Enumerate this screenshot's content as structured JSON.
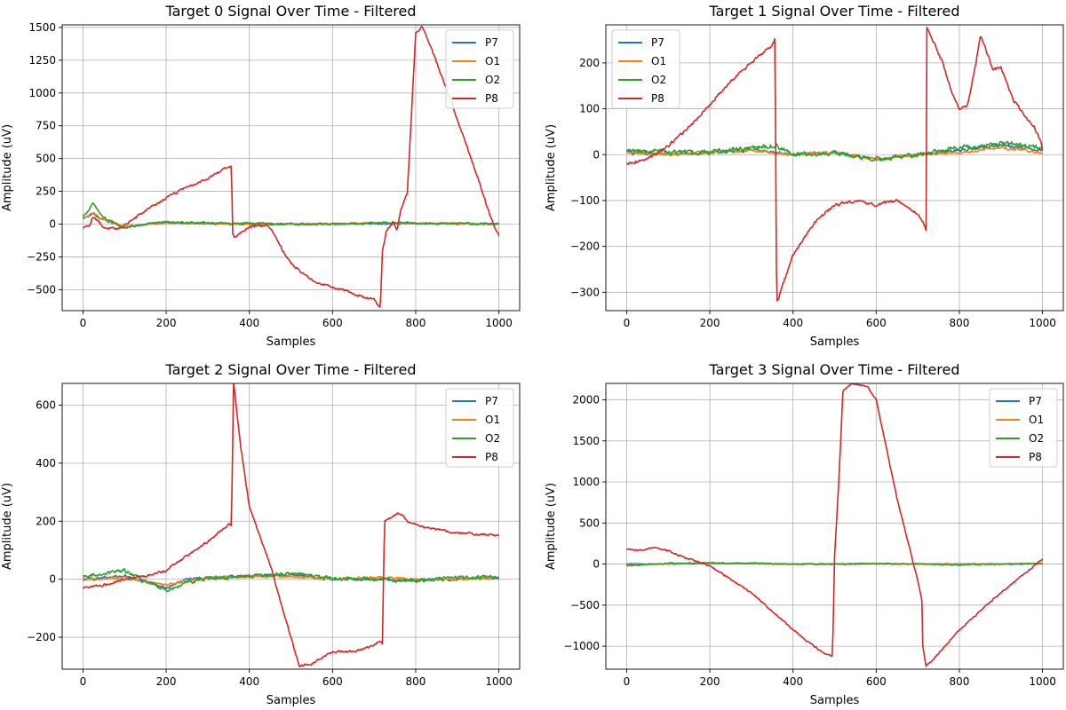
{
  "figure": {
    "colors": {
      "P7": "#1f77b4",
      "O1": "#ff7f0e",
      "O2": "#2ca02c",
      "P8": "#d62728"
    }
  },
  "chart_data": [
    {
      "type": "line",
      "title": "Target 0 Signal Over Time - Filtered",
      "xlabel": "Samples",
      "ylabel": "Amplitude (uV)",
      "xlim": [
        -50,
        1050
      ],
      "ylim": [
        -660,
        1520
      ],
      "xticks": [
        0,
        200,
        400,
        600,
        800,
        1000
      ],
      "yticks": [
        -500,
        -250,
        0,
        250,
        500,
        750,
        1000,
        1250,
        1500
      ],
      "grid": true,
      "legend_position": "top-right",
      "series": [
        {
          "name": "P7",
          "color": "#1f77b4",
          "noise": 10,
          "x": [
            0,
            10,
            25,
            40,
            60,
            100,
            150,
            200,
            300,
            400,
            500,
            600,
            700,
            800,
            900,
            1000
          ],
          "y": [
            40,
            55,
            80,
            45,
            20,
            -20,
            0,
            10,
            5,
            0,
            0,
            0,
            5,
            5,
            5,
            0
          ]
        },
        {
          "name": "O1",
          "color": "#ff7f0e",
          "noise": 10,
          "x": [
            0,
            10,
            25,
            40,
            60,
            100,
            150,
            200,
            300,
            400,
            500,
            600,
            700,
            800,
            900,
            1000
          ],
          "y": [
            50,
            60,
            90,
            50,
            25,
            -20,
            0,
            10,
            5,
            0,
            0,
            0,
            10,
            5,
            5,
            0
          ]
        },
        {
          "name": "O2",
          "color": "#2ca02c",
          "noise": 12,
          "x": [
            0,
            10,
            25,
            40,
            60,
            100,
            150,
            200,
            300,
            400,
            500,
            600,
            700,
            800,
            900,
            1000
          ],
          "y": [
            60,
            90,
            160,
            80,
            30,
            -30,
            0,
            15,
            10,
            5,
            0,
            0,
            10,
            10,
            5,
            0
          ]
        },
        {
          "name": "P8",
          "color": "#d62728",
          "noise": 15,
          "x": [
            0,
            15,
            25,
            50,
            80,
            100,
            150,
            200,
            250,
            300,
            340,
            357,
            360,
            365,
            380,
            400,
            440,
            450,
            480,
            500,
            550,
            600,
            650,
            700,
            715,
            720,
            722,
            730,
            745,
            755,
            765,
            780,
            800,
            815,
            830,
            860,
            900,
            950,
            980,
            1000
          ],
          "y": [
            -30,
            -10,
            60,
            -20,
            -40,
            -10,
            100,
            200,
            280,
            350,
            420,
            440,
            -80,
            -100,
            -70,
            -20,
            -10,
            -30,
            -200,
            -300,
            -430,
            -480,
            -530,
            -580,
            -640,
            -220,
            -180,
            -50,
            20,
            -50,
            120,
            250,
            1450,
            1510,
            1400,
            1150,
            800,
            350,
            50,
            -90
          ]
        }
      ]
    },
    {
      "type": "line",
      "title": "Target 1 Signal Over Time - Filtered",
      "xlabel": "Samples",
      "ylabel": "Amplitude (uV)",
      "xlim": [
        -50,
        1050
      ],
      "ylim": [
        -340,
        283
      ],
      "xticks": [
        0,
        200,
        400,
        600,
        800,
        1000
      ],
      "yticks": [
        -300,
        -200,
        -100,
        0,
        100,
        200
      ],
      "grid": true,
      "legend_position": "top-left",
      "series": [
        {
          "name": "P7",
          "color": "#1f77b4",
          "noise": 5,
          "x": [
            0,
            100,
            200,
            300,
            360,
            400,
            500,
            600,
            700,
            800,
            900,
            1000
          ],
          "y": [
            5,
            0,
            5,
            10,
            5,
            0,
            5,
            -10,
            0,
            10,
            20,
            10
          ]
        },
        {
          "name": "O1",
          "color": "#ff7f0e",
          "noise": 5,
          "x": [
            0,
            100,
            200,
            300,
            360,
            400,
            500,
            600,
            700,
            800,
            900,
            1000
          ],
          "y": [
            5,
            0,
            5,
            10,
            5,
            0,
            5,
            -10,
            0,
            5,
            15,
            5
          ]
        },
        {
          "name": "O2",
          "color": "#2ca02c",
          "noise": 8,
          "x": [
            0,
            100,
            200,
            300,
            360,
            400,
            500,
            600,
            700,
            800,
            900,
            1000
          ],
          "y": [
            10,
            5,
            5,
            15,
            20,
            0,
            5,
            -10,
            0,
            15,
            25,
            15
          ]
        },
        {
          "name": "P8",
          "color": "#d62728",
          "noise": 5,
          "x": [
            0,
            50,
            100,
            150,
            200,
            250,
            300,
            350,
            357,
            360,
            362,
            370,
            400,
            450,
            500,
            550,
            600,
            650,
            700,
            715,
            720,
            722,
            740,
            760,
            780,
            800,
            820,
            840,
            850,
            860,
            880,
            900,
            930,
            960,
            980,
            995,
            1000
          ],
          "y": [
            -20,
            -10,
            20,
            60,
            110,
            160,
            200,
            240,
            255,
            -250,
            -320,
            -300,
            -220,
            -150,
            -110,
            -100,
            -110,
            -100,
            -130,
            -150,
            -165,
            275,
            240,
            200,
            140,
            100,
            110,
            200,
            260,
            240,
            185,
            190,
            120,
            80,
            60,
            30,
            10
          ]
        }
      ]
    },
    {
      "type": "line",
      "title": "Target 2 Signal Over Time - Filtered",
      "xlabel": "Samples",
      "ylabel": "Amplitude (uV)",
      "xlim": [
        -50,
        1050
      ],
      "ylim": [
        -310,
        675
      ],
      "xticks": [
        0,
        200,
        400,
        600,
        800,
        1000
      ],
      "yticks": [
        -200,
        0,
        200,
        400,
        600
      ],
      "grid": true,
      "legend_position": "top-right",
      "series": [
        {
          "name": "P7",
          "color": "#1f77b4",
          "noise": 7,
          "x": [
            0,
            100,
            200,
            250,
            300,
            400,
            500,
            600,
            700,
            800,
            900,
            1000
          ],
          "y": [
            0,
            10,
            -30,
            0,
            5,
            10,
            15,
            0,
            0,
            -5,
            0,
            5
          ]
        },
        {
          "name": "O1",
          "color": "#ff7f0e",
          "noise": 7,
          "x": [
            0,
            100,
            200,
            250,
            300,
            400,
            500,
            600,
            700,
            800,
            900,
            1000
          ],
          "y": [
            0,
            5,
            -20,
            -5,
            5,
            10,
            10,
            0,
            5,
            0,
            0,
            5
          ]
        },
        {
          "name": "O2",
          "color": "#2ca02c",
          "noise": 10,
          "x": [
            0,
            100,
            200,
            250,
            300,
            400,
            500,
            600,
            700,
            800,
            900,
            1000
          ],
          "y": [
            10,
            30,
            -40,
            -10,
            0,
            10,
            20,
            5,
            0,
            -5,
            5,
            10
          ]
        },
        {
          "name": "P8",
          "color": "#d62728",
          "noise": 6,
          "x": [
            0,
            50,
            100,
            150,
            200,
            250,
            300,
            350,
            357,
            360,
            362,
            380,
            400,
            450,
            500,
            520,
            550,
            600,
            650,
            700,
            715,
            720,
            725,
            760,
            780,
            820,
            900,
            1000
          ],
          "y": [
            -30,
            -20,
            0,
            10,
            30,
            80,
            130,
            190,
            180,
            480,
            680,
            450,
            250,
            50,
            -200,
            -300,
            -290,
            -250,
            -250,
            -230,
            -210,
            -220,
            200,
            230,
            200,
            180,
            160,
            150
          ]
        }
      ]
    },
    {
      "type": "line",
      "title": "Target 3 Signal Over Time - Filtered",
      "xlabel": "Samples",
      "ylabel": "Amplitude (uV)",
      "xlim": [
        -50,
        1050
      ],
      "ylim": [
        -1280,
        2200
      ],
      "xticks": [
        0,
        200,
        400,
        600,
        800,
        1000
      ],
      "yticks": [
        -1000,
        -500,
        0,
        500,
        1000,
        1500,
        2000
      ],
      "grid": true,
      "legend_position": "top-right",
      "series": [
        {
          "name": "P7",
          "color": "#1f77b4",
          "noise": 8,
          "x": [
            0,
            100,
            200,
            300,
            400,
            500,
            600,
            700,
            800,
            900,
            1000
          ],
          "y": [
            0,
            0,
            10,
            5,
            0,
            0,
            5,
            0,
            0,
            0,
            5
          ]
        },
        {
          "name": "O1",
          "color": "#ff7f0e",
          "noise": 8,
          "x": [
            0,
            100,
            200,
            300,
            400,
            500,
            600,
            700,
            800,
            900,
            1000
          ],
          "y": [
            -10,
            0,
            10,
            5,
            0,
            0,
            5,
            0,
            0,
            0,
            5
          ]
        },
        {
          "name": "O2",
          "color": "#2ca02c",
          "noise": 10,
          "x": [
            0,
            100,
            200,
            300,
            400,
            500,
            600,
            700,
            800,
            900,
            1000
          ],
          "y": [
            -20,
            10,
            15,
            10,
            0,
            0,
            5,
            0,
            -10,
            0,
            5
          ]
        },
        {
          "name": "P8",
          "color": "#d62728",
          "noise": 15,
          "x": [
            0,
            30,
            60,
            100,
            150,
            200,
            300,
            400,
            450,
            480,
            495,
            500,
            510,
            520,
            540,
            560,
            580,
            600,
            650,
            700,
            710,
            712,
            720,
            740,
            800,
            900,
            1000
          ],
          "y": [
            180,
            170,
            200,
            160,
            60,
            -20,
            -350,
            -800,
            -1000,
            -1100,
            -1130,
            100,
            1000,
            2100,
            2200,
            2180,
            2150,
            2000,
            800,
            -200,
            -450,
            -1000,
            -1250,
            -1150,
            -800,
            -350,
            60
          ]
        }
      ]
    }
  ]
}
